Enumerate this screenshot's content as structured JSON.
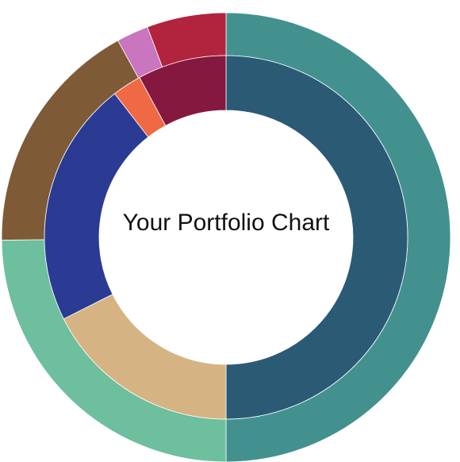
{
  "chart_data": {
    "type": "pie",
    "variant": "nested-donut",
    "title": "Your Portfolio Chart",
    "rings": [
      {
        "name": "",
        "slices": [
          {
            "value": 50.0,
            "color": "#42918f"
          },
          {
            "value": 24.8,
            "color": "#6dbf9e"
          },
          {
            "value": 17.2,
            "color": "#7f5a36"
          },
          {
            "value": 2.3,
            "color": "#c975bf"
          },
          {
            "value": 5.7,
            "color": "#b2233e"
          }
        ]
      },
      {
        "name": "",
        "slices": [
          {
            "value": 50.0,
            "color": "#2b5a75"
          },
          {
            "value": 17.6,
            "color": "#d6b382"
          },
          {
            "value": 21.9,
            "color": "#2b3b93"
          },
          {
            "value": 2.6,
            "color": "#ef6a44"
          },
          {
            "value": 7.9,
            "color": "#85183e"
          }
        ]
      }
    ]
  }
}
